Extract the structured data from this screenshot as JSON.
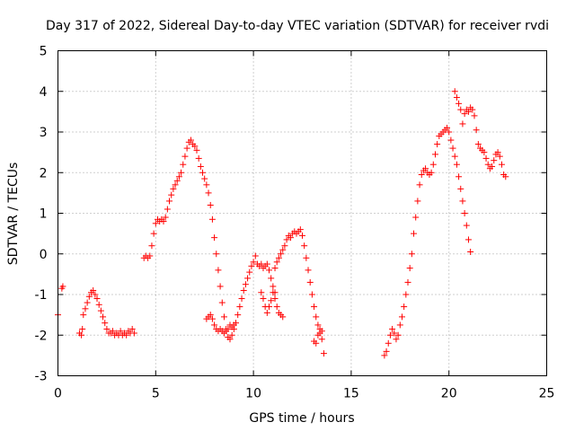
{
  "chart_data": {
    "type": "scatter",
    "title": "Day 317 of 2022, Sidereal Day-to-day VTEC variation (SDTVAR) for receiver rvdi",
    "xlabel": "GPS time / hours",
    "ylabel": "SDTVAR / TECUs",
    "xlim": [
      0,
      25
    ],
    "ylim": [
      -3,
      5
    ],
    "xticks": [
      0,
      5,
      10,
      15,
      20,
      25
    ],
    "yticks": [
      -3,
      -2,
      -1,
      0,
      1,
      2,
      3,
      4,
      5
    ],
    "grid": true,
    "marker": "+",
    "color": "#ff0000",
    "series": [
      {
        "name": "SDTVAR",
        "points": [
          [
            0.0,
            -1.5
          ],
          [
            0.2,
            -0.85
          ],
          [
            0.25,
            -0.8
          ],
          [
            1.1,
            -1.95
          ],
          [
            1.2,
            -2.0
          ],
          [
            1.25,
            -1.85
          ],
          [
            1.3,
            -1.5
          ],
          [
            1.4,
            -1.35
          ],
          [
            1.5,
            -1.2
          ],
          [
            1.6,
            -1.05
          ],
          [
            1.7,
            -0.95
          ],
          [
            1.8,
            -0.9
          ],
          [
            1.9,
            -1.0
          ],
          [
            2.0,
            -1.1
          ],
          [
            2.1,
            -1.25
          ],
          [
            2.2,
            -1.4
          ],
          [
            2.3,
            -1.55
          ],
          [
            2.4,
            -1.7
          ],
          [
            2.5,
            -1.85
          ],
          [
            2.6,
            -1.95
          ],
          [
            2.7,
            -1.95
          ],
          [
            2.8,
            -1.9
          ],
          [
            2.9,
            -2.0
          ],
          [
            3.0,
            -1.95
          ],
          [
            3.1,
            -2.0
          ],
          [
            3.2,
            -1.9
          ],
          [
            3.3,
            -2.0
          ],
          [
            3.4,
            -1.95
          ],
          [
            3.5,
            -2.0
          ],
          [
            3.6,
            -1.9
          ],
          [
            3.7,
            -1.95
          ],
          [
            3.8,
            -1.85
          ],
          [
            3.9,
            -1.95
          ],
          [
            4.4,
            -0.1
          ],
          [
            4.5,
            -0.05
          ],
          [
            4.6,
            -0.1
          ],
          [
            4.7,
            -0.05
          ],
          [
            4.8,
            0.2
          ],
          [
            4.9,
            0.5
          ],
          [
            5.0,
            0.75
          ],
          [
            5.1,
            0.85
          ],
          [
            5.2,
            0.8
          ],
          [
            5.3,
            0.85
          ],
          [
            5.4,
            0.8
          ],
          [
            5.5,
            0.9
          ],
          [
            5.6,
            1.1
          ],
          [
            5.7,
            1.3
          ],
          [
            5.8,
            1.45
          ],
          [
            5.9,
            1.6
          ],
          [
            6.0,
            1.7
          ],
          [
            6.1,
            1.8
          ],
          [
            6.2,
            1.9
          ],
          [
            6.3,
            2.0
          ],
          [
            6.4,
            2.2
          ],
          [
            6.5,
            2.4
          ],
          [
            6.6,
            2.6
          ],
          [
            6.7,
            2.75
          ],
          [
            6.8,
            2.8
          ],
          [
            6.9,
            2.7
          ],
          [
            7.0,
            2.65
          ],
          [
            7.1,
            2.55
          ],
          [
            7.2,
            2.35
          ],
          [
            7.3,
            2.15
          ],
          [
            7.4,
            2.0
          ],
          [
            7.5,
            1.85
          ],
          [
            7.6,
            1.7
          ],
          [
            7.7,
            1.5
          ],
          [
            7.8,
            1.2
          ],
          [
            7.9,
            0.85
          ],
          [
            8.0,
            0.4
          ],
          [
            8.1,
            0.0
          ],
          [
            8.2,
            -0.4
          ],
          [
            8.3,
            -0.8
          ],
          [
            8.4,
            -1.2
          ],
          [
            8.5,
            -1.55
          ],
          [
            8.6,
            -1.85
          ],
          [
            8.7,
            -2.05
          ],
          [
            8.8,
            -2.1
          ],
          [
            8.9,
            -2.0
          ],
          [
            9.0,
            -1.85
          ],
          [
            9.1,
            -1.7
          ],
          [
            9.2,
            -1.5
          ],
          [
            9.3,
            -1.3
          ],
          [
            9.4,
            -1.1
          ],
          [
            9.5,
            -0.9
          ],
          [
            9.6,
            -0.75
          ],
          [
            9.7,
            -0.6
          ],
          [
            9.8,
            -0.45
          ],
          [
            9.9,
            -0.3
          ],
          [
            10.0,
            -0.2
          ],
          [
            10.1,
            -0.05
          ],
          [
            10.2,
            -0.25
          ],
          [
            10.3,
            -0.3
          ],
          [
            10.4,
            -0.25
          ],
          [
            10.5,
            -0.35
          ],
          [
            10.6,
            -0.3
          ],
          [
            10.7,
            -0.25
          ],
          [
            10.8,
            -0.4
          ],
          [
            10.9,
            -0.6
          ],
          [
            11.0,
            -0.8
          ],
          [
            11.1,
            -0.95
          ],
          [
            7.6,
            -1.6
          ],
          [
            7.7,
            -1.55
          ],
          [
            7.8,
            -1.5
          ],
          [
            7.9,
            -1.6
          ],
          [
            8.0,
            -1.75
          ],
          [
            8.1,
            -1.85
          ],
          [
            8.2,
            -1.9
          ],
          [
            8.3,
            -1.85
          ],
          [
            8.4,
            -1.9
          ],
          [
            8.5,
            -1.95
          ],
          [
            8.6,
            -1.9
          ],
          [
            8.7,
            -1.85
          ],
          [
            8.8,
            -1.75
          ],
          [
            8.9,
            -1.8
          ],
          [
            9.0,
            -1.75
          ],
          [
            10.4,
            -0.95
          ],
          [
            10.5,
            -1.1
          ],
          [
            10.6,
            -1.3
          ],
          [
            10.7,
            -1.45
          ],
          [
            10.8,
            -1.3
          ],
          [
            10.9,
            -1.15
          ],
          [
            11.0,
            -0.95
          ],
          [
            11.1,
            -1.1
          ],
          [
            11.2,
            -1.3
          ],
          [
            11.3,
            -1.45
          ],
          [
            11.4,
            -1.5
          ],
          [
            11.5,
            -1.55
          ],
          [
            11.1,
            -0.35
          ],
          [
            11.2,
            -0.2
          ],
          [
            11.3,
            -0.1
          ],
          [
            11.4,
            0.0
          ],
          [
            11.5,
            0.1
          ],
          [
            11.6,
            0.2
          ],
          [
            11.7,
            0.35
          ],
          [
            11.8,
            0.45
          ],
          [
            11.9,
            0.4
          ],
          [
            12.0,
            0.5
          ],
          [
            12.1,
            0.55
          ],
          [
            12.2,
            0.5
          ],
          [
            12.3,
            0.55
          ],
          [
            12.4,
            0.6
          ],
          [
            12.5,
            0.45
          ],
          [
            12.6,
            0.2
          ],
          [
            12.7,
            -0.1
          ],
          [
            12.8,
            -0.4
          ],
          [
            12.9,
            -0.7
          ],
          [
            13.0,
            -1.0
          ],
          [
            13.1,
            -1.3
          ],
          [
            13.2,
            -1.55
          ],
          [
            13.3,
            -1.75
          ],
          [
            13.4,
            -1.95
          ],
          [
            13.5,
            -2.1
          ],
          [
            13.6,
            -2.45
          ],
          [
            13.1,
            -2.15
          ],
          [
            13.2,
            -2.2
          ],
          [
            13.3,
            -2.0
          ],
          [
            13.4,
            -1.85
          ],
          [
            13.5,
            -1.9
          ],
          [
            16.7,
            -2.5
          ],
          [
            16.8,
            -2.4
          ],
          [
            16.9,
            -2.2
          ],
          [
            17.0,
            -2.0
          ],
          [
            17.1,
            -1.85
          ],
          [
            17.2,
            -1.95
          ],
          [
            17.3,
            -2.1
          ],
          [
            17.4,
            -2.0
          ],
          [
            17.5,
            -1.75
          ],
          [
            17.6,
            -1.55
          ],
          [
            17.7,
            -1.3
          ],
          [
            17.8,
            -1.0
          ],
          [
            17.9,
            -0.7
          ],
          [
            18.0,
            -0.35
          ],
          [
            18.1,
            0.0
          ],
          [
            18.2,
            0.5
          ],
          [
            18.3,
            0.9
          ],
          [
            18.4,
            1.3
          ],
          [
            18.5,
            1.7
          ],
          [
            18.6,
            1.95
          ],
          [
            18.7,
            2.05
          ],
          [
            18.8,
            2.1
          ],
          [
            18.9,
            2.0
          ],
          [
            19.0,
            1.95
          ],
          [
            19.1,
            2.0
          ],
          [
            19.2,
            2.2
          ],
          [
            19.3,
            2.45
          ],
          [
            19.4,
            2.7
          ],
          [
            19.5,
            2.9
          ],
          [
            19.6,
            2.95
          ],
          [
            19.7,
            3.0
          ],
          [
            19.8,
            3.05
          ],
          [
            19.9,
            3.1
          ],
          [
            20.0,
            3.0
          ],
          [
            20.1,
            2.8
          ],
          [
            20.2,
            2.6
          ],
          [
            20.3,
            2.4
          ],
          [
            20.4,
            2.2
          ],
          [
            20.5,
            1.9
          ],
          [
            20.6,
            1.6
          ],
          [
            20.7,
            1.3
          ],
          [
            20.8,
            1.0
          ],
          [
            20.9,
            0.7
          ],
          [
            21.0,
            0.35
          ],
          [
            21.1,
            0.05
          ],
          [
            20.3,
            4.0
          ],
          [
            20.4,
            3.85
          ],
          [
            20.5,
            3.7
          ],
          [
            20.6,
            3.55
          ],
          [
            20.7,
            3.2
          ],
          [
            20.8,
            3.45
          ],
          [
            20.9,
            3.55
          ],
          [
            21.0,
            3.5
          ],
          [
            21.1,
            3.6
          ],
          [
            21.2,
            3.55
          ],
          [
            21.3,
            3.4
          ],
          [
            21.4,
            3.05
          ],
          [
            21.5,
            2.7
          ],
          [
            21.6,
            2.6
          ],
          [
            21.7,
            2.55
          ],
          [
            21.8,
            2.5
          ],
          [
            21.9,
            2.35
          ],
          [
            22.0,
            2.2
          ],
          [
            22.1,
            2.1
          ],
          [
            22.2,
            2.15
          ],
          [
            22.3,
            2.3
          ],
          [
            22.4,
            2.45
          ],
          [
            22.5,
            2.5
          ],
          [
            22.6,
            2.4
          ],
          [
            22.7,
            2.2
          ],
          [
            22.8,
            1.95
          ],
          [
            22.9,
            1.9
          ]
        ]
      }
    ]
  }
}
